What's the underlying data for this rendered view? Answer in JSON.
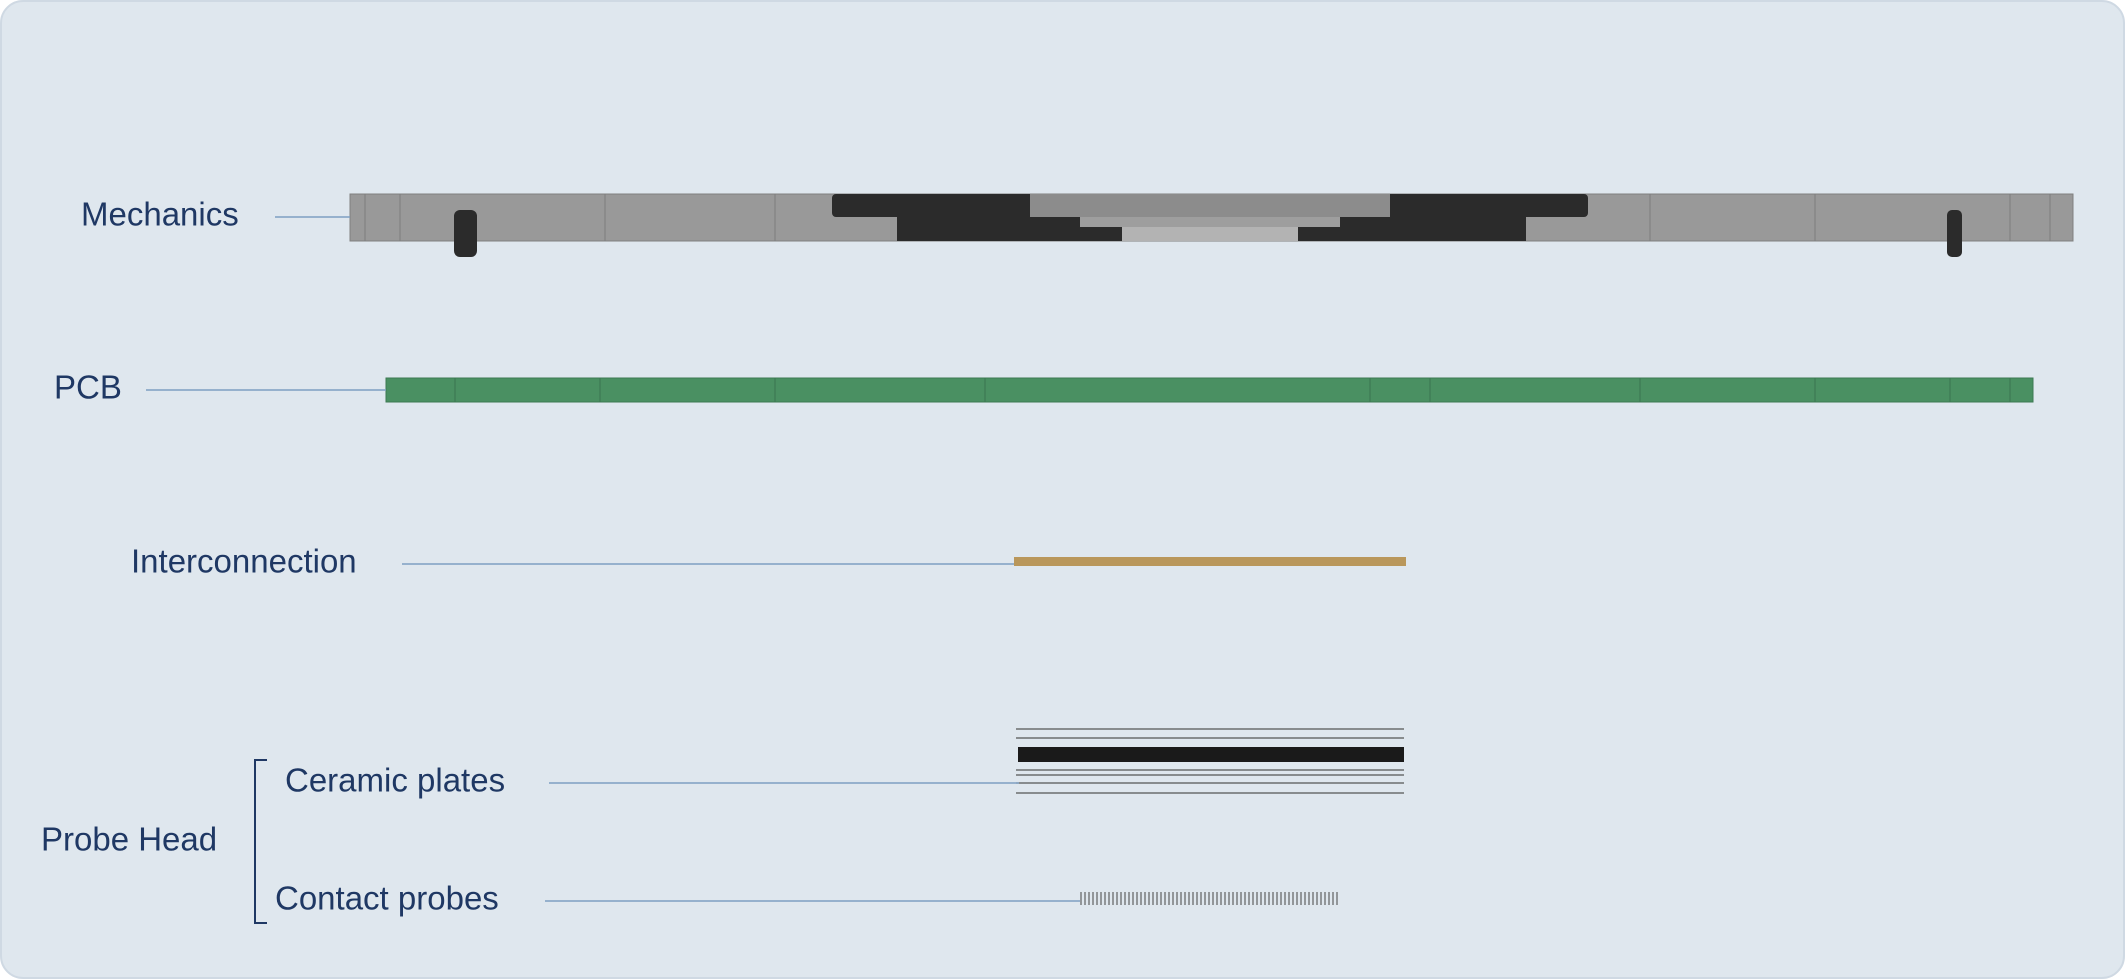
{
  "labels": {
    "mechanics": "Mechanics",
    "pcb": "PCB",
    "interconnection": "Interconnection",
    "ceramic_plates": "Ceramic plates",
    "contact_probes": "Contact probes",
    "probe_head": "Probe Head"
  }
}
